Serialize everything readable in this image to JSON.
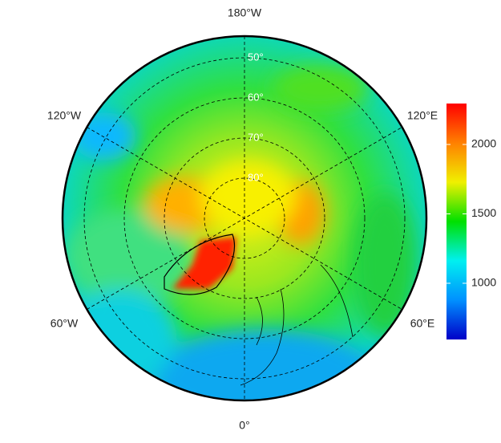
{
  "map": {
    "projection": "north polar stereographic",
    "lon_labels": [
      "180°W",
      "120°W",
      "120°E",
      "60°W",
      "60°E",
      "0°"
    ],
    "lat_circles": [
      {
        "value": 50,
        "label": "50°"
      },
      {
        "value": 60,
        "label": "60°"
      },
      {
        "value": 70,
        "label": "70°"
      },
      {
        "value": 80,
        "label": "80°"
      }
    ],
    "colorbar": {
      "lim": [
        595,
        2295
      ],
      "ticks": [
        1000,
        1500,
        2000
      ],
      "colors": [
        "#0000c8",
        "#0090ff",
        "#00f0f0",
        "#00e000",
        "#f0f000",
        "#ff8000",
        "#ff0000"
      ]
    }
  }
}
